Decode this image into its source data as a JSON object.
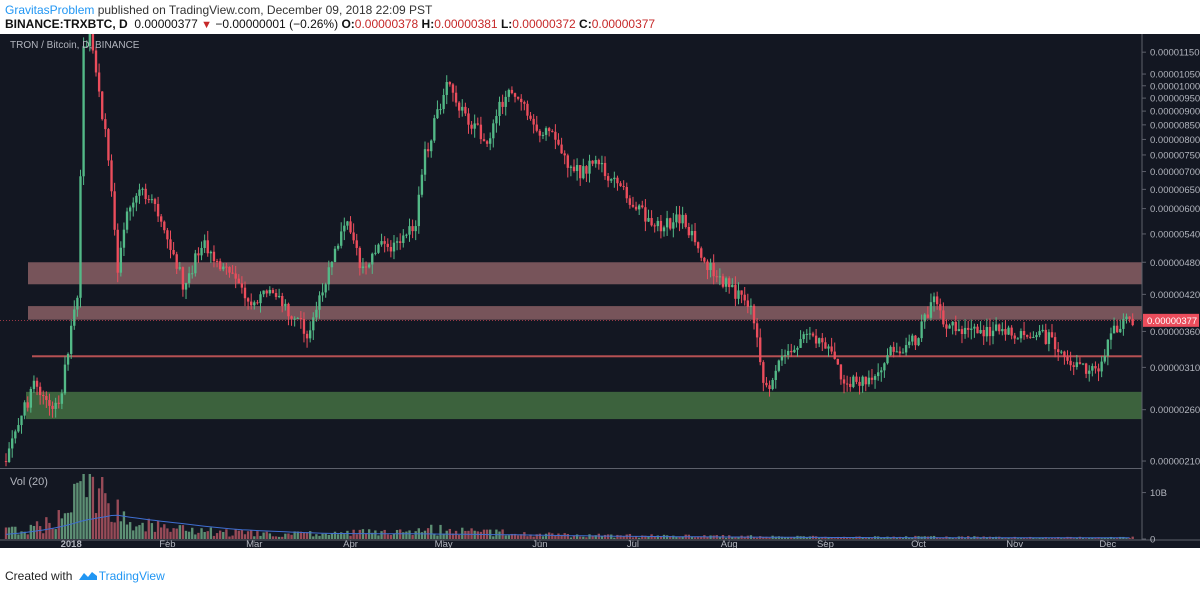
{
  "header": {
    "author": "GravitasProblem",
    "published_text": " published on TradingView.com, December 09, 2018 22:09 PST",
    "symbol": "BINANCE:TRXBTC, D",
    "last": "0.00000377",
    "change": "−0.00000001 (−0.26%)",
    "open_label": "O:",
    "open": "0.00000378",
    "high_label": "H:",
    "high": "0.00000381",
    "low_label": "L:",
    "low": "0.00000372",
    "close_label": "C:",
    "close": "0.00000377"
  },
  "footer": {
    "created_with": "Created with",
    "brand": "TradingView"
  },
  "chart_data": {
    "type": "candlestick",
    "title": "TRON / Bitcoin, D, BINANCE",
    "volume_label": "Vol (20)",
    "price_ticks": [
      "0.00001150",
      "0.00001050",
      "0.00001000",
      "0.00000950",
      "0.00000900",
      "0.00000850",
      "0.00000800",
      "0.00000750",
      "0.00000700",
      "0.00000650",
      "0.00000600",
      "0.00000540",
      "0.00000480",
      "0.00000420",
      "0.00000360",
      "0.00000310",
      "0.00000260",
      "0.00000210"
    ],
    "price_tick_values": [
      1.15e-05,
      1.05e-05,
      1e-05,
      9.5e-06,
      9e-06,
      8.5e-06,
      8e-06,
      7.5e-06,
      7e-06,
      6.5e-06,
      6e-06,
      5.4e-06,
      4.8e-06,
      4.2e-06,
      3.6e-06,
      3.1e-06,
      2.6e-06,
      2.1e-06
    ],
    "price_scale": "log",
    "current_price_label": "0.00000377",
    "current_price": 3.77e-06,
    "volume_ticks": [
      "10B",
      "0"
    ],
    "volume_tick_values": [
      10000000000,
      0
    ],
    "x_labels": [
      "2018",
      "Feb",
      "Mar",
      "Apr",
      "May",
      "Jun",
      "Jul",
      "Aug",
      "Sep",
      "Oct",
      "Nov",
      "Dec"
    ],
    "x_label_dates": [
      "2018-01-01",
      "2018-02-01",
      "2018-03-01",
      "2018-04-01",
      "2018-05-01",
      "2018-06-01",
      "2018-07-01",
      "2018-08-01",
      "2018-09-01",
      "2018-10-01",
      "2018-11-01",
      "2018-12-01"
    ],
    "date_range": [
      "2017-12-11",
      "2018-12-09"
    ],
    "zones": [
      {
        "kind": "resistance",
        "top": 4.8e-06,
        "bottom": 4.38e-06,
        "color": "#f2a0a0"
      },
      {
        "kind": "resistance",
        "top": 4e-06,
        "bottom": 3.78e-06,
        "color": "#f2a0a0"
      },
      {
        "kind": "line",
        "top": 3.26e-06,
        "bottom": 3.24e-06,
        "color": "#e06060"
      },
      {
        "kind": "support",
        "top": 2.8e-06,
        "bottom": 2.5e-06,
        "color": "#6fbf5f"
      }
    ],
    "close_path": [
      [
        "2017-12-11",
        2.1e-06
      ],
      [
        "2017-12-20",
        2.9e-06
      ],
      [
        "2017-12-28",
        2.6e-06
      ],
      [
        "2018-01-03",
        4.2e-06
      ],
      [
        "2018-01-05",
        1.15e-05
      ],
      [
        "2018-01-07",
        1.25e-05
      ],
      [
        "2018-01-10",
        9.5e-06
      ],
      [
        "2018-01-13",
        7.5e-06
      ],
      [
        "2018-01-16",
        4.6e-06
      ],
      [
        "2018-01-19",
        5.8e-06
      ],
      [
        "2018-01-24",
        6.5e-06
      ],
      [
        "2018-01-30",
        5.8e-06
      ],
      [
        "2018-02-06",
        4.4e-06
      ],
      [
        "2018-02-13",
        5.2e-06
      ],
      [
        "2018-02-20",
        4.6e-06
      ],
      [
        "2018-02-28",
        4.1e-06
      ],
      [
        "2018-03-05",
        4.2e-06
      ],
      [
        "2018-03-12",
        3.95e-06
      ],
      [
        "2018-03-18",
        3.6e-06
      ],
      [
        "2018-03-25",
        4.6e-06
      ],
      [
        "2018-03-31",
        5.7e-06
      ],
      [
        "2018-04-05",
        4.6e-06
      ],
      [
        "2018-04-10",
        5.2e-06
      ],
      [
        "2018-04-16",
        5.1e-06
      ],
      [
        "2018-04-22",
        5.6e-06
      ],
      [
        "2018-04-25",
        7.5e-06
      ],
      [
        "2018-04-28",
        8.5e-06
      ],
      [
        "2018-05-02",
        1.02e-05
      ],
      [
        "2018-05-06",
        9.2e-06
      ],
      [
        "2018-05-10",
        8.6e-06
      ],
      [
        "2018-05-15",
        7.8e-06
      ],
      [
        "2018-05-19",
        9.1e-06
      ],
      [
        "2018-05-23",
        9.7e-06
      ],
      [
        "2018-05-27",
        9.3e-06
      ],
      [
        "2018-05-30",
        8.3e-06
      ],
      [
        "2018-06-04",
        8.2e-06
      ],
      [
        "2018-06-10",
        7.3e-06
      ],
      [
        "2018-06-14",
        6.9e-06
      ],
      [
        "2018-06-19",
        7.3e-06
      ],
      [
        "2018-06-25",
        6.7e-06
      ],
      [
        "2018-07-01",
        6.1e-06
      ],
      [
        "2018-07-10",
        5.5e-06
      ],
      [
        "2018-07-16",
        5.8e-06
      ],
      [
        "2018-07-22",
        5.1e-06
      ],
      [
        "2018-07-28",
        4.5e-06
      ],
      [
        "2018-08-02",
        4.3e-06
      ],
      [
        "2018-08-08",
        3.9e-06
      ],
      [
        "2018-08-13",
        2.8e-06
      ],
      [
        "2018-08-18",
        3.2e-06
      ],
      [
        "2018-08-26",
        3.6e-06
      ],
      [
        "2018-09-01",
        3.4e-06
      ],
      [
        "2018-09-08",
        2.9e-06
      ],
      [
        "2018-09-15",
        2.9e-06
      ],
      [
        "2018-09-22",
        3.3e-06
      ],
      [
        "2018-09-30",
        3.5e-06
      ],
      [
        "2018-10-06",
        4.1e-06
      ],
      [
        "2018-10-10",
        3.7e-06
      ],
      [
        "2018-10-20",
        3.6e-06
      ],
      [
        "2018-10-31",
        3.6e-06
      ],
      [
        "2018-11-08",
        3.6e-06
      ],
      [
        "2018-11-15",
        3.4e-06
      ],
      [
        "2018-11-21",
        3.1e-06
      ],
      [
        "2018-11-28",
        3.1e-06
      ],
      [
        "2018-12-02",
        3.6e-06
      ],
      [
        "2018-12-07",
        3.8e-06
      ],
      [
        "2018-12-09",
        3.77e-06
      ]
    ],
    "volume_path": [
      [
        "2017-12-11",
        2000000000
      ],
      [
        "2017-12-25",
        3500000000
      ],
      [
        "2018-01-04",
        11000000000
      ],
      [
        "2018-01-08",
        12500000000
      ],
      [
        "2018-01-14",
        7000000000
      ],
      [
        "2018-01-24",
        3500000000
      ],
      [
        "2018-02-06",
        2200000000
      ],
      [
        "2018-02-20",
        1500000000
      ],
      [
        "2018-03-10",
        1200000000
      ],
      [
        "2018-03-25",
        1600000000
      ],
      [
        "2018-04-10",
        1500000000
      ],
      [
        "2018-04-25",
        2200000000
      ],
      [
        "2018-05-05",
        2000000000
      ],
      [
        "2018-05-20",
        1500000000
      ],
      [
        "2018-06-10",
        900000000
      ],
      [
        "2018-07-10",
        700000000
      ],
      [
        "2018-08-10",
        600000000
      ],
      [
        "2018-09-10",
        400000000
      ],
      [
        "2018-10-10",
        500000000
      ],
      [
        "2018-11-10",
        300000000
      ],
      [
        "2018-12-09",
        400000000
      ]
    ],
    "volume_ma_path": [
      [
        "2017-12-11",
        1000000000
      ],
      [
        "2018-01-05",
        4000000000
      ],
      [
        "2018-01-15",
        5200000000
      ],
      [
        "2018-02-05",
        3400000000
      ],
      [
        "2018-02-25",
        2000000000
      ],
      [
        "2018-03-25",
        1200000000
      ],
      [
        "2018-04-25",
        1100000000
      ],
      [
        "2018-05-25",
        900000000
      ],
      [
        "2018-06-25",
        600000000
      ],
      [
        "2018-08-25",
        350000000
      ],
      [
        "2018-10-25",
        250000000
      ],
      [
        "2018-12-09",
        250000000
      ]
    ],
    "colors": {
      "up": "#53b987",
      "down": "#eb4d5c",
      "up_volume": "#6ba583",
      "down_volume": "#b05562",
      "background": "#131722",
      "axis_text": "#b2b5be",
      "price_label_bg": "#eb4d5c",
      "volume_ma": "#3f6fd1"
    }
  }
}
